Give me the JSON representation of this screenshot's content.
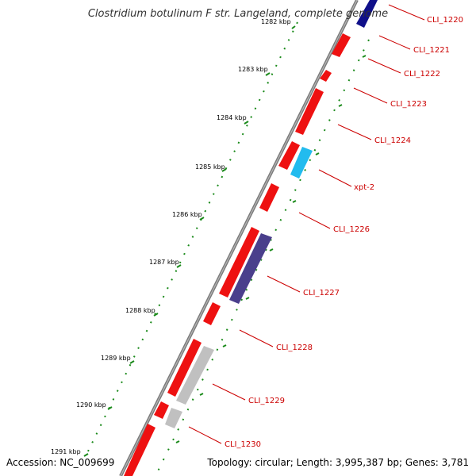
{
  "title": "Clostridium botulinum F str. Langeland, complete genome",
  "accession": "Accession: NC_009699",
  "summary": "Topology: circular; Length: 3,995,387 bp; Genes: 3,781",
  "colors": {
    "backbone": "#7a7a7a",
    "forward_gene": "#ee1111",
    "reverse_gene": "#4a3f8c",
    "pseudo_gene": "#c0c0c0",
    "rna_gene": "#22bbee",
    "tick": "#1a8a1a",
    "label": "#cc0000"
  },
  "ruler": {
    "ticks": [
      "1282 kbp",
      "1283 kbp",
      "1284 kbp",
      "1285 kbp",
      "1286 kbp",
      "1287 kbp",
      "1288 kbp",
      "1289 kbp",
      "1290 kbp",
      "1291 kbp"
    ]
  },
  "genes": [
    {
      "name": "CLI_1220",
      "strand": "reverse",
      "color": "#10108a"
    },
    {
      "name": "CLI_1221",
      "strand": "forward",
      "color": "#ee1111"
    },
    {
      "name": "CLI_1222",
      "strand": "forward",
      "color": "#ee1111"
    },
    {
      "name": "CLI_1223",
      "strand": "forward",
      "color": "#ee1111"
    },
    {
      "name": "CLI_1224",
      "strand": "forward",
      "color": "#ee1111"
    },
    {
      "name": "xpt-2",
      "strand": "reverse",
      "color": "#22bbee"
    },
    {
      "name": "CLI_1226",
      "strand": "forward",
      "color": "#ee1111"
    },
    {
      "name": "CLI_1227",
      "strand": "reverse",
      "color": "#4a3f8c"
    },
    {
      "name": "CLI_1228",
      "strand": "forward",
      "color": "#ee1111"
    },
    {
      "name": "CLI_1229",
      "strand": "reverse",
      "color": "#c0c0c0"
    },
    {
      "name": "CLI_1230",
      "strand": "reverse",
      "color": "#c0c0c0"
    }
  ]
}
